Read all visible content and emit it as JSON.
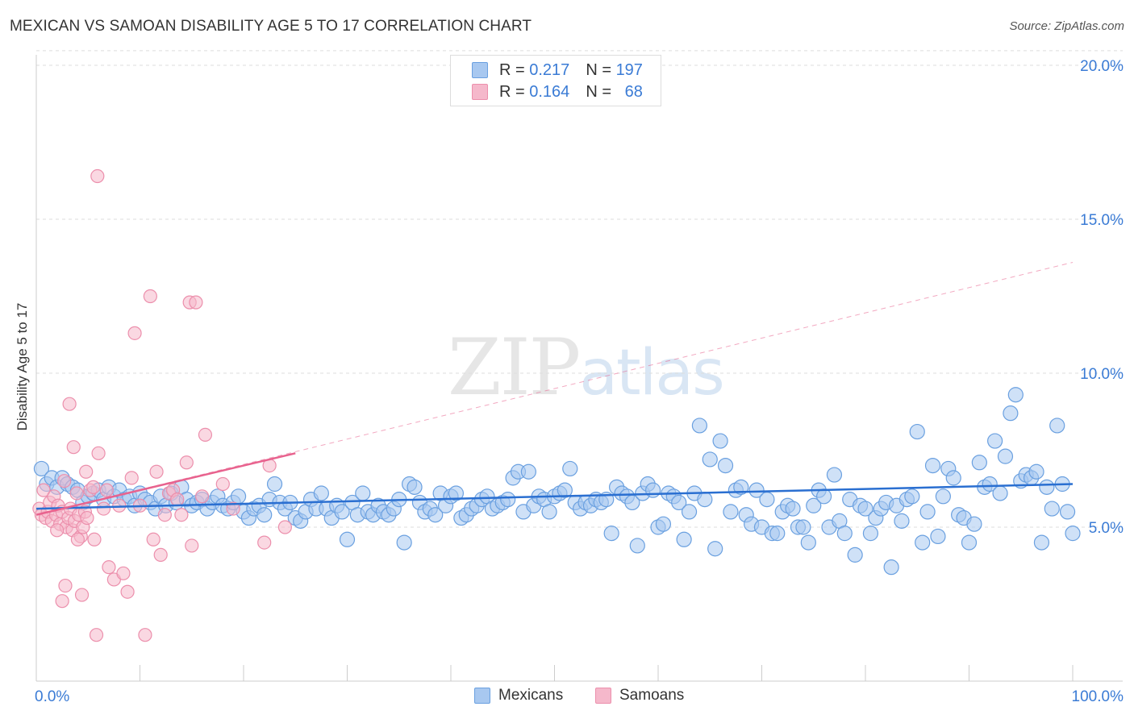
{
  "title": "MEXICAN VS SAMOAN DISABILITY AGE 5 TO 17 CORRELATION CHART",
  "source": "Source: ZipAtlas.com",
  "watermark": {
    "zip": "ZIP",
    "atlas": "atlas"
  },
  "legend": {
    "rows": [
      {
        "r_label": "R =",
        "r_value": "0.217",
        "n_label": "N =",
        "n_value": "197",
        "color": "#a8c8f0"
      },
      {
        "r_label": "R =",
        "r_value": "0.164",
        "n_label": "N =",
        "n_value": "68",
        "color": "#f5b8cb"
      }
    ]
  },
  "bottom_legend": [
    {
      "label": "Mexicans",
      "color": "#a8c8f0"
    },
    {
      "label": "Samoans",
      "color": "#f5b8cb"
    }
  ],
  "colors": {
    "mexican_fill": "#a8c8f0",
    "mexican_stroke": "#6aa0e0",
    "mexican_line": "#2a6fd1",
    "samoan_fill": "#f5b8cb",
    "samoan_stroke": "#ec8fac",
    "samoan_line": "#e8628e",
    "axis_text": "#3a7bd5",
    "grid": "#dddddd"
  },
  "chart_data": {
    "type": "scatter",
    "title": "MEXICAN VS SAMOAN DISABILITY AGE 5 TO 17 CORRELATION CHART",
    "xlabel": "",
    "ylabel": "Disability Age 5 to 17",
    "xlim": [
      0,
      100
    ],
    "ylim": [
      0,
      20.5
    ],
    "x_tick_labels": [
      "0.0%",
      "100.0%"
    ],
    "y_ticks": [
      5,
      10,
      15,
      20
    ],
    "y_tick_labels": [
      "5.0%",
      "10.0%",
      "15.0%",
      "20.0%"
    ],
    "grid": "horizontal dashed",
    "legend_position": "top-center",
    "series": [
      {
        "name": "Mexicans",
        "trend": {
          "x": [
            0,
            100
          ],
          "y": [
            5.6,
            6.4
          ]
        },
        "points": [
          [
            0.5,
            6.9
          ],
          [
            1.0,
            6.4
          ],
          [
            1.5,
            6.6
          ],
          [
            2.0,
            6.3
          ],
          [
            2.5,
            6.6
          ],
          [
            3.0,
            6.4
          ],
          [
            3.5,
            6.3
          ],
          [
            4.0,
            6.2
          ],
          [
            4.5,
            5.8
          ],
          [
            5.0,
            6.0
          ],
          [
            5.5,
            6.1
          ],
          [
            6.0,
            6.2
          ],
          [
            6.5,
            5.9
          ],
          [
            7.0,
            6.3
          ],
          [
            7.5,
            6.0
          ],
          [
            8.0,
            6.2
          ],
          [
            8.5,
            5.9
          ],
          [
            9.0,
            6.0
          ],
          [
            9.5,
            5.7
          ],
          [
            10.0,
            6.1
          ],
          [
            10.5,
            5.9
          ],
          [
            11.0,
            5.8
          ],
          [
            11.5,
            5.6
          ],
          [
            12.0,
            6.0
          ],
          [
            12.5,
            5.7
          ],
          [
            13.0,
            6.1
          ],
          [
            13.5,
            5.8
          ],
          [
            14.0,
            6.3
          ],
          [
            14.5,
            5.9
          ],
          [
            15.0,
            5.7
          ],
          [
            15.5,
            5.8
          ],
          [
            16.0,
            5.9
          ],
          [
            16.5,
            5.6
          ],
          [
            17.0,
            5.8
          ],
          [
            17.5,
            6.0
          ],
          [
            18.0,
            5.7
          ],
          [
            18.5,
            5.6
          ],
          [
            19.0,
            5.8
          ],
          [
            19.5,
            6.0
          ],
          [
            20.0,
            5.5
          ],
          [
            20.5,
            5.3
          ],
          [
            21.0,
            5.6
          ],
          [
            21.5,
            5.7
          ],
          [
            22.0,
            5.4
          ],
          [
            22.5,
            5.9
          ],
          [
            23.0,
            6.4
          ],
          [
            23.5,
            5.8
          ],
          [
            24.0,
            5.6
          ],
          [
            24.5,
            5.8
          ],
          [
            25.0,
            5.3
          ],
          [
            25.5,
            5.2
          ],
          [
            26.0,
            5.5
          ],
          [
            26.5,
            5.9
          ],
          [
            27.0,
            5.6
          ],
          [
            27.5,
            6.1
          ],
          [
            28.0,
            5.6
          ],
          [
            28.5,
            5.3
          ],
          [
            29.0,
            5.7
          ],
          [
            29.5,
            5.5
          ],
          [
            30.0,
            4.6
          ],
          [
            30.5,
            5.8
          ],
          [
            31.0,
            5.4
          ],
          [
            31.5,
            6.1
          ],
          [
            32.0,
            5.5
          ],
          [
            32.5,
            5.4
          ],
          [
            33.0,
            5.7
          ],
          [
            33.5,
            5.5
          ],
          [
            34.0,
            5.4
          ],
          [
            34.5,
            5.6
          ],
          [
            35.0,
            5.9
          ],
          [
            35.5,
            4.5
          ],
          [
            36.0,
            6.4
          ],
          [
            36.5,
            6.3
          ],
          [
            37.0,
            5.8
          ],
          [
            37.5,
            5.5
          ],
          [
            38.0,
            5.6
          ],
          [
            38.5,
            5.4
          ],
          [
            39.0,
            6.1
          ],
          [
            39.5,
            5.7
          ],
          [
            40.0,
            6.0
          ],
          [
            40.5,
            6.1
          ],
          [
            41.0,
            5.3
          ],
          [
            41.5,
            5.4
          ],
          [
            42.0,
            5.6
          ],
          [
            42.5,
            5.7
          ],
          [
            43.0,
            5.9
          ],
          [
            43.5,
            6.0
          ],
          [
            44.0,
            5.6
          ],
          [
            44.5,
            5.7
          ],
          [
            45.0,
            5.8
          ],
          [
            45.5,
            5.9
          ],
          [
            46.0,
            6.6
          ],
          [
            46.5,
            6.8
          ],
          [
            47.0,
            5.5
          ],
          [
            47.5,
            6.8
          ],
          [
            48.0,
            5.7
          ],
          [
            48.5,
            6.0
          ],
          [
            49.0,
            5.9
          ],
          [
            49.5,
            5.5
          ],
          [
            50.0,
            6.0
          ],
          [
            50.5,
            6.1
          ],
          [
            51.0,
            6.2
          ],
          [
            51.5,
            6.9
          ],
          [
            52.0,
            5.8
          ],
          [
            52.5,
            5.6
          ],
          [
            53.0,
            5.8
          ],
          [
            53.5,
            5.7
          ],
          [
            54.0,
            5.9
          ],
          [
            54.5,
            5.8
          ],
          [
            55.0,
            5.9
          ],
          [
            55.5,
            4.8
          ],
          [
            56.0,
            6.3
          ],
          [
            56.5,
            6.1
          ],
          [
            57.0,
            6.0
          ],
          [
            57.5,
            5.8
          ],
          [
            58.0,
            4.4
          ],
          [
            58.5,
            6.1
          ],
          [
            59.0,
            6.4
          ],
          [
            59.5,
            6.2
          ],
          [
            60.0,
            5.0
          ],
          [
            60.5,
            5.1
          ],
          [
            61.0,
            6.1
          ],
          [
            61.5,
            6.0
          ],
          [
            62.0,
            5.8
          ],
          [
            62.5,
            4.6
          ],
          [
            63.0,
            5.5
          ],
          [
            63.5,
            6.1
          ],
          [
            64.0,
            8.3
          ],
          [
            64.5,
            5.9
          ],
          [
            65.0,
            7.2
          ],
          [
            65.5,
            4.3
          ],
          [
            66.0,
            7.8
          ],
          [
            66.5,
            7.0
          ],
          [
            67.0,
            5.5
          ],
          [
            67.5,
            6.2
          ],
          [
            68.0,
            6.3
          ],
          [
            68.5,
            5.4
          ],
          [
            69.0,
            5.1
          ],
          [
            69.5,
            6.2
          ],
          [
            70.0,
            5.0
          ],
          [
            70.5,
            5.9
          ],
          [
            71.0,
            4.8
          ],
          [
            71.5,
            4.8
          ],
          [
            72.0,
            5.5
          ],
          [
            72.5,
            5.7
          ],
          [
            73.0,
            5.6
          ],
          [
            73.5,
            5.0
          ],
          [
            74.0,
            5.0
          ],
          [
            74.5,
            4.5
          ],
          [
            75.0,
            5.7
          ],
          [
            75.5,
            6.2
          ],
          [
            76.0,
            6.0
          ],
          [
            76.5,
            5.0
          ],
          [
            77.0,
            6.7
          ],
          [
            77.5,
            5.2
          ],
          [
            78.0,
            4.8
          ],
          [
            78.5,
            5.9
          ],
          [
            79.0,
            4.1
          ],
          [
            79.5,
            5.7
          ],
          [
            80.0,
            5.6
          ],
          [
            80.5,
            4.8
          ],
          [
            81.0,
            5.3
          ],
          [
            81.5,
            5.6
          ],
          [
            82.0,
            5.8
          ],
          [
            82.5,
            3.7
          ],
          [
            83.0,
            5.7
          ],
          [
            83.5,
            5.2
          ],
          [
            84.0,
            5.9
          ],
          [
            84.5,
            6.0
          ],
          [
            85.0,
            8.1
          ],
          [
            85.5,
            4.5
          ],
          [
            86.0,
            5.5
          ],
          [
            86.5,
            7.0
          ],
          [
            87.0,
            4.7
          ],
          [
            87.5,
            6.0
          ],
          [
            88.0,
            6.9
          ],
          [
            88.5,
            6.6
          ],
          [
            89.0,
            5.4
          ],
          [
            89.5,
            5.3
          ],
          [
            90.0,
            4.5
          ],
          [
            90.5,
            5.1
          ],
          [
            91.0,
            7.1
          ],
          [
            91.5,
            6.3
          ],
          [
            92.0,
            6.4
          ],
          [
            92.5,
            7.8
          ],
          [
            93.0,
            6.1
          ],
          [
            93.5,
            7.3
          ],
          [
            94.0,
            8.7
          ],
          [
            94.5,
            9.3
          ],
          [
            95.0,
            6.5
          ],
          [
            95.5,
            6.7
          ],
          [
            96.0,
            6.6
          ],
          [
            96.5,
            6.8
          ],
          [
            97.0,
            4.5
          ],
          [
            97.5,
            6.3
          ],
          [
            98.0,
            5.6
          ],
          [
            98.5,
            8.3
          ],
          [
            99.0,
            6.4
          ],
          [
            99.5,
            5.5
          ],
          [
            100.0,
            4.8
          ]
        ]
      },
      {
        "name": "Samoans",
        "trend": {
          "x": [
            0,
            25
          ],
          "y": [
            5.4,
            7.4
          ]
        },
        "trend_extended": {
          "x": [
            0,
            100
          ],
          "y": [
            5.4,
            13.6
          ]
        },
        "points": [
          [
            0.3,
            5.6
          ],
          [
            0.5,
            5.4
          ],
          [
            0.7,
            6.2
          ],
          [
            0.9,
            5.3
          ],
          [
            1.1,
            5.5
          ],
          [
            1.3,
            5.8
          ],
          [
            1.5,
            5.2
          ],
          [
            1.7,
            6.0
          ],
          [
            1.9,
            5.4
          ],
          [
            2.1,
            5.7
          ],
          [
            2.3,
            5.1
          ],
          [
            2.5,
            5.5
          ],
          [
            2.7,
            6.5
          ],
          [
            2.9,
            5.0
          ],
          [
            3.1,
            5.3
          ],
          [
            3.3,
            5.6
          ],
          [
            3.5,
            4.9
          ],
          [
            3.7,
            5.2
          ],
          [
            3.9,
            6.1
          ],
          [
            4.1,
            5.4
          ],
          [
            4.3,
            4.7
          ],
          [
            4.5,
            5.0
          ],
          [
            4.7,
            5.5
          ],
          [
            4.9,
            5.3
          ],
          [
            2.0,
            4.9
          ],
          [
            2.5,
            2.6
          ],
          [
            2.8,
            3.1
          ],
          [
            3.2,
            9.0
          ],
          [
            3.6,
            7.6
          ],
          [
            4.0,
            4.6
          ],
          [
            4.4,
            2.8
          ],
          [
            4.8,
            6.8
          ],
          [
            5.2,
            6.2
          ],
          [
            5.6,
            4.6
          ],
          [
            6.0,
            7.4
          ],
          [
            6.5,
            5.6
          ],
          [
            7.0,
            3.7
          ],
          [
            7.5,
            3.3
          ],
          [
            8.0,
            5.7
          ],
          [
            8.4,
            3.5
          ],
          [
            8.8,
            2.9
          ],
          [
            9.2,
            6.6
          ],
          [
            9.5,
            11.3
          ],
          [
            10.0,
            5.7
          ],
          [
            10.5,
            1.5
          ],
          [
            11.0,
            12.5
          ],
          [
            11.3,
            4.6
          ],
          [
            11.6,
            6.8
          ],
          [
            12.0,
            4.1
          ],
          [
            12.4,
            5.4
          ],
          [
            12.8,
            6.1
          ],
          [
            13.2,
            6.2
          ],
          [
            13.6,
            5.9
          ],
          [
            14.0,
            5.4
          ],
          [
            14.5,
            7.1
          ],
          [
            14.8,
            12.3
          ],
          [
            15.0,
            4.4
          ],
          [
            15.4,
            12.3
          ],
          [
            5.5,
            6.3
          ],
          [
            6.8,
            6.2
          ],
          [
            16.0,
            6.0
          ],
          [
            16.3,
            8.0
          ],
          [
            18.0,
            6.4
          ],
          [
            19.0,
            5.6
          ],
          [
            22.0,
            4.5
          ],
          [
            22.5,
            7.0
          ],
          [
            24.0,
            5.0
          ],
          [
            5.8,
            1.5
          ]
        ]
      }
    ],
    "extra_point": [
      5.9,
      16.4
    ]
  }
}
